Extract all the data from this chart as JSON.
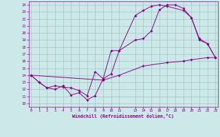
{
  "xlabel": "Windchill (Refroidissement éolien,°C)",
  "bg_color": "#cce8e8",
  "line_color": "#880088",
  "grid_color": "#99bbbb",
  "x_ticks": [
    0,
    1,
    2,
    3,
    4,
    5,
    6,
    7,
    8,
    9,
    10,
    11,
    13,
    14,
    15,
    16,
    17,
    18,
    19,
    20,
    21,
    22,
    23
  ],
  "y_ticks": [
    10,
    11,
    12,
    13,
    14,
    15,
    16,
    17,
    18,
    19,
    20,
    21,
    22,
    23,
    24
  ],
  "xlim": [
    -0.3,
    23.3
  ],
  "ylim": [
    9.5,
    24.5
  ],
  "curve1_x": [
    0,
    1,
    2,
    3,
    4,
    5,
    6,
    7,
    8,
    9,
    10,
    11,
    13,
    14,
    15,
    16,
    17,
    18,
    19,
    20,
    21,
    22,
    23
  ],
  "curve1_y": [
    14.0,
    13.0,
    12.2,
    12.0,
    12.5,
    11.2,
    11.5,
    10.5,
    11.1,
    13.5,
    14.2,
    17.5,
    19.0,
    19.2,
    20.3,
    23.3,
    24.0,
    24.0,
    23.5,
    22.2,
    19.2,
    18.5,
    16.5
  ],
  "curve2_x": [
    0,
    1,
    2,
    3,
    4,
    5,
    6,
    7,
    8,
    9,
    10,
    11,
    13,
    14,
    15,
    16,
    17,
    19,
    20,
    21,
    22,
    23
  ],
  "curve2_y": [
    14.0,
    13.0,
    12.2,
    12.5,
    12.3,
    12.2,
    11.8,
    11.1,
    14.5,
    13.5,
    17.5,
    17.5,
    22.5,
    23.2,
    23.8,
    24.0,
    23.8,
    23.2,
    22.2,
    19.0,
    18.5,
    16.5
  ],
  "curve3_x": [
    0,
    9,
    11,
    14,
    17,
    19,
    20,
    22,
    23
  ],
  "curve3_y": [
    14.0,
    13.3,
    14.0,
    15.3,
    15.8,
    16.0,
    16.2,
    16.5,
    16.5
  ]
}
